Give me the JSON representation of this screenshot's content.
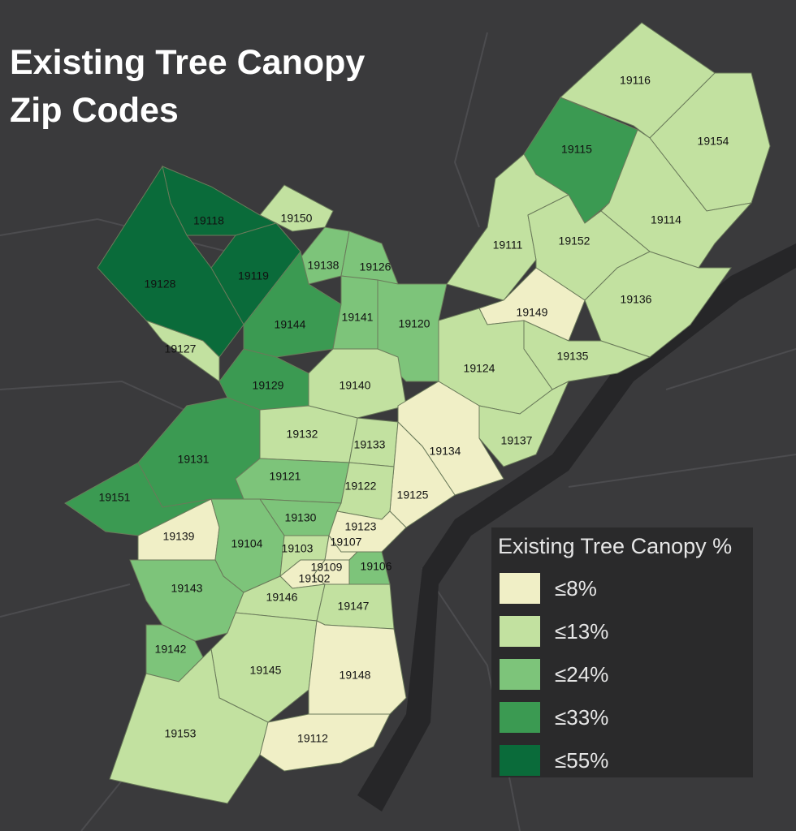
{
  "title_lines": [
    "Existing Tree Canopy",
    "Zip Codes"
  ],
  "legend": {
    "title": "Existing Tree Canopy %",
    "items": [
      {
        "label": "≤8%",
        "color": "#f0efc6"
      },
      {
        "label": "≤13%",
        "color": "#c2e1a0"
      },
      {
        "label": "≤24%",
        "color": "#7dc47a"
      },
      {
        "label": "≤33%",
        "color": "#3b9a52"
      },
      {
        "label": "≤55%",
        "color": "#0a6b3a"
      }
    ]
  },
  "zips": [
    {
      "label": "19116",
      "color": "#c2e1a0"
    },
    {
      "label": "19154",
      "color": "#c2e1a0"
    },
    {
      "label": "19115",
      "color": "#3b9a52"
    },
    {
      "label": "19114",
      "color": "#c2e1a0"
    },
    {
      "label": "19111",
      "color": "#c2e1a0"
    },
    {
      "label": "19152",
      "color": "#c2e1a0"
    },
    {
      "label": "19136",
      "color": "#c2e1a0"
    },
    {
      "label": "19149",
      "color": "#f0efc6"
    },
    {
      "label": "19135",
      "color": "#c2e1a0"
    },
    {
      "label": "19124",
      "color": "#c2e1a0"
    },
    {
      "label": "19137",
      "color": "#c2e1a0"
    },
    {
      "label": "19150",
      "color": "#c2e1a0"
    },
    {
      "label": "19138",
      "color": "#7dc47a"
    },
    {
      "label": "19126",
      "color": "#7dc47a"
    },
    {
      "label": "19118",
      "color": "#0a6b3a"
    },
    {
      "label": "19119",
      "color": "#0a6b3a"
    },
    {
      "label": "19128",
      "color": "#0a6b3a"
    },
    {
      "label": "19127",
      "color": "#c2e1a0"
    },
    {
      "label": "19144",
      "color": "#3b9a52"
    },
    {
      "label": "19141",
      "color": "#7dc47a"
    },
    {
      "label": "19120",
      "color": "#7dc47a"
    },
    {
      "label": "19129",
      "color": "#3b9a52"
    },
    {
      "label": "19140",
      "color": "#c2e1a0"
    },
    {
      "label": "19132",
      "color": "#c2e1a0"
    },
    {
      "label": "19133",
      "color": "#c2e1a0"
    },
    {
      "label": "19134",
      "color": "#f0efc6"
    },
    {
      "label": "19125",
      "color": "#f0efc6"
    },
    {
      "label": "19131",
      "color": "#3b9a52"
    },
    {
      "label": "19151",
      "color": "#3b9a52"
    },
    {
      "label": "19121",
      "color": "#7dc47a"
    },
    {
      "label": "19122",
      "color": "#c2e1a0"
    },
    {
      "label": "19130",
      "color": "#7dc47a"
    },
    {
      "label": "19123",
      "color": "#f0efc6"
    },
    {
      "label": "19139",
      "color": "#f0efc6"
    },
    {
      "label": "19104",
      "color": "#7dc47a"
    },
    {
      "label": "19103",
      "color": "#c2e1a0"
    },
    {
      "label": "19107",
      "color": "#f0efc6"
    },
    {
      "label": "19106",
      "color": "#7dc47a"
    },
    {
      "label": "19109",
      "color": "#f0efc6"
    },
    {
      "label": "19102",
      "color": "#f0efc6"
    },
    {
      "label": "19143",
      "color": "#7dc47a"
    },
    {
      "label": "19146",
      "color": "#c2e1a0"
    },
    {
      "label": "19147",
      "color": "#c2e1a0"
    },
    {
      "label": "19142",
      "color": "#7dc47a"
    },
    {
      "label": "19145",
      "color": "#c2e1a0"
    },
    {
      "label": "19148",
      "color": "#f0efc6"
    },
    {
      "label": "19153",
      "color": "#c2e1a0"
    },
    {
      "label": "19112",
      "color": "#f0efc6"
    }
  ]
}
